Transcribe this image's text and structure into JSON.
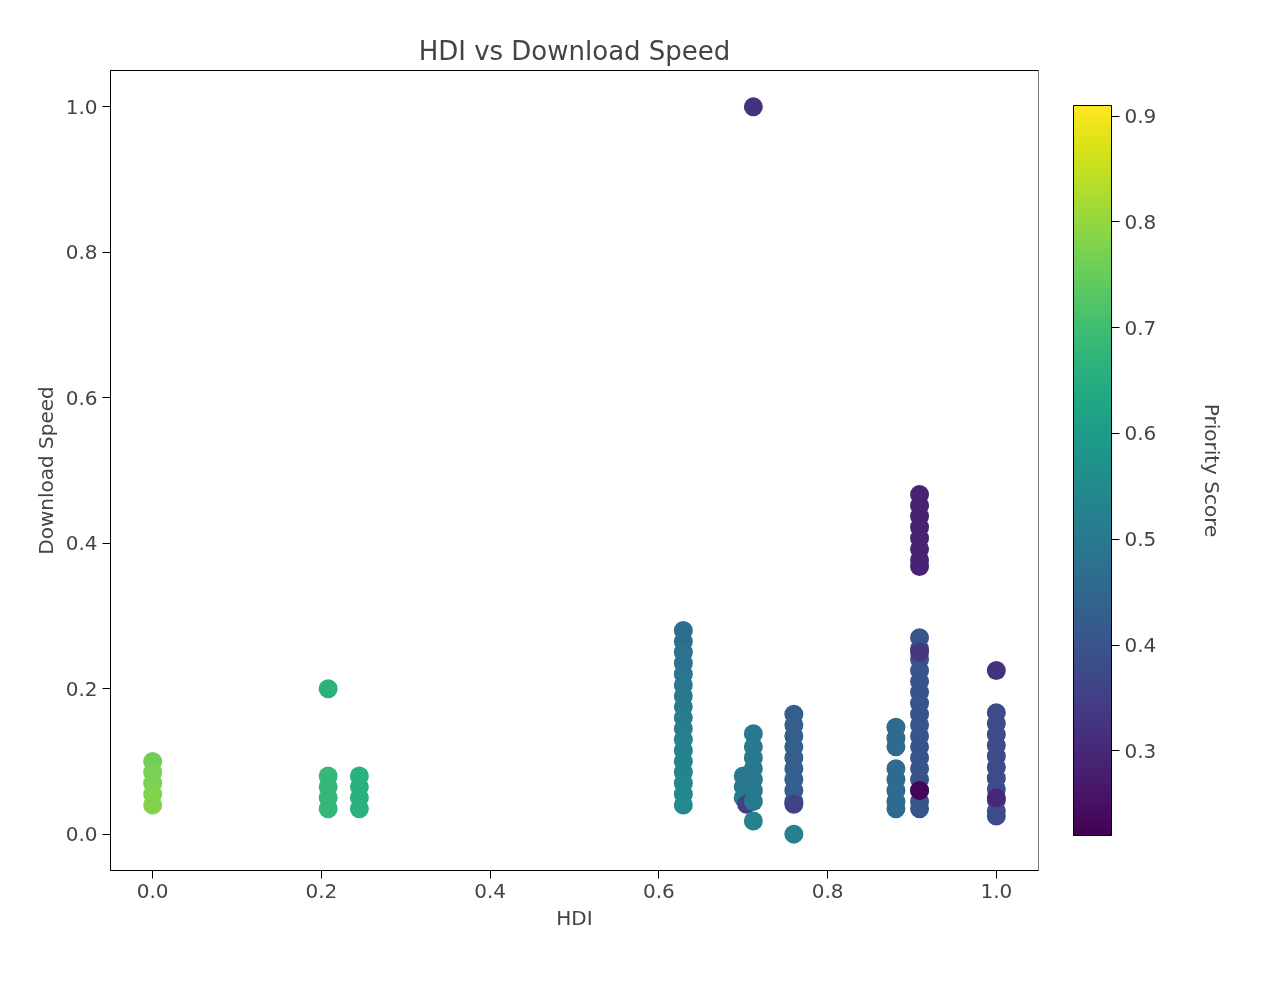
{
  "chart_data": {
    "type": "scatter",
    "title": "HDI vs Download Speed",
    "xlabel": "HDI",
    "ylabel": "Download Speed",
    "clabel": "Priority Score",
    "x": [
      0.0,
      0.0,
      0.0,
      0.0,
      0.0,
      0.208,
      0.208,
      0.208,
      0.208,
      0.208,
      0.245,
      0.245,
      0.245,
      0.245,
      0.629,
      0.629,
      0.629,
      0.629,
      0.629,
      0.629,
      0.629,
      0.629,
      0.629,
      0.629,
      0.629,
      0.629,
      0.629,
      0.629,
      0.629,
      0.629,
      0.629,
      0.7,
      0.7,
      0.7,
      0.704,
      0.712,
      0.712,
      0.712,
      0.712,
      0.712,
      0.712,
      0.712,
      0.712,
      0.712,
      0.76,
      0.76,
      0.76,
      0.76,
      0.76,
      0.76,
      0.76,
      0.76,
      0.76,
      0.76,
      0.76,
      0.881,
      0.881,
      0.881,
      0.881,
      0.881,
      0.881,
      0.881,
      0.881,
      0.909,
      0.909,
      0.909,
      0.909,
      0.909,
      0.909,
      0.909,
      0.909,
      0.909,
      0.909,
      0.909,
      0.909,
      0.909,
      0.909,
      0.909,
      0.909,
      0.909,
      0.909,
      0.909,
      0.909,
      0.909,
      0.909,
      0.909,
      0.909,
      0.909,
      0.909,
      0.909,
      1.0,
      1.0,
      1.0,
      1.0,
      1.0,
      1.0,
      1.0,
      1.0,
      1.0,
      1.0,
      1.0,
      1.0,
      1.0
    ],
    "values": [
      0.1,
      0.085,
      0.07,
      0.055,
      0.04,
      0.2,
      0.08,
      0.065,
      0.05,
      0.035,
      0.08,
      0.065,
      0.05,
      0.035,
      0.28,
      0.265,
      0.25,
      0.235,
      0.22,
      0.205,
      0.19,
      0.175,
      0.16,
      0.145,
      0.13,
      0.115,
      0.1,
      0.085,
      0.07,
      0.055,
      0.04,
      0.08,
      0.065,
      0.05,
      0.041,
      0.138,
      0.12,
      0.105,
      0.09,
      0.075,
      0.06,
      0.045,
      0.018,
      1.0,
      0.165,
      0.15,
      0.135,
      0.12,
      0.105,
      0.09,
      0.075,
      0.06,
      0.045,
      0.041,
      0.0,
      0.147,
      0.132,
      0.12,
      0.09,
      0.075,
      0.06,
      0.045,
      0.035,
      0.467,
      0.452,
      0.437,
      0.422,
      0.407,
      0.392,
      0.377,
      0.368,
      0.27,
      0.255,
      0.24,
      0.225,
      0.21,
      0.195,
      0.18,
      0.165,
      0.15,
      0.135,
      0.12,
      0.105,
      0.09,
      0.075,
      0.06,
      0.045,
      0.035,
      0.25,
      0.06,
      0.225,
      0.167,
      0.152,
      0.137,
      0.122,
      0.107,
      0.092,
      0.077,
      0.062,
      0.047,
      0.032,
      0.025,
      0.05
    ],
    "cvalues": [
      0.76,
      0.77,
      0.77,
      0.78,
      0.78,
      0.66,
      0.68,
      0.68,
      0.68,
      0.68,
      0.66,
      0.66,
      0.66,
      0.66,
      0.47,
      0.47,
      0.48,
      0.48,
      0.49,
      0.49,
      0.5,
      0.5,
      0.51,
      0.51,
      0.52,
      0.52,
      0.53,
      0.53,
      0.54,
      0.54,
      0.55,
      0.5,
      0.5,
      0.5,
      0.35,
      0.5,
      0.5,
      0.5,
      0.5,
      0.5,
      0.5,
      0.5,
      0.52,
      0.32,
      0.43,
      0.43,
      0.43,
      0.43,
      0.43,
      0.43,
      0.43,
      0.43,
      0.43,
      0.36,
      0.52,
      0.46,
      0.46,
      0.46,
      0.46,
      0.46,
      0.46,
      0.46,
      0.46,
      0.29,
      0.29,
      0.29,
      0.29,
      0.29,
      0.29,
      0.29,
      0.29,
      0.4,
      0.4,
      0.4,
      0.4,
      0.4,
      0.4,
      0.4,
      0.4,
      0.4,
      0.4,
      0.4,
      0.4,
      0.4,
      0.4,
      0.4,
      0.4,
      0.4,
      0.33,
      0.23,
      0.32,
      0.38,
      0.38,
      0.38,
      0.38,
      0.38,
      0.38,
      0.38,
      0.38,
      0.38,
      0.38,
      0.38,
      0.3
    ],
    "xlim": [
      -0.05,
      1.05
    ],
    "ylim": [
      -0.05,
      1.05
    ],
    "xticks": [
      {
        "value": 0.0,
        "label": "0.0"
      },
      {
        "value": 0.2,
        "label": "0.2"
      },
      {
        "value": 0.4,
        "label": "0.4"
      },
      {
        "value": 0.6,
        "label": "0.6"
      },
      {
        "value": 0.8,
        "label": "0.8"
      },
      {
        "value": 1.0,
        "label": "1.0"
      }
    ],
    "yticks": [
      {
        "value": 0.0,
        "label": "0.0"
      },
      {
        "value": 0.2,
        "label": "0.2"
      },
      {
        "value": 0.4,
        "label": "0.4"
      },
      {
        "value": 0.6,
        "label": "0.6"
      },
      {
        "value": 0.8,
        "label": "0.8"
      },
      {
        "value": 1.0,
        "label": "1.0"
      }
    ],
    "clim": [
      0.22,
      0.91
    ],
    "cticks": [
      0.3,
      0.4,
      0.5,
      0.6,
      0.7,
      0.8,
      0.9
    ],
    "marker": "circle",
    "grid": false
  }
}
